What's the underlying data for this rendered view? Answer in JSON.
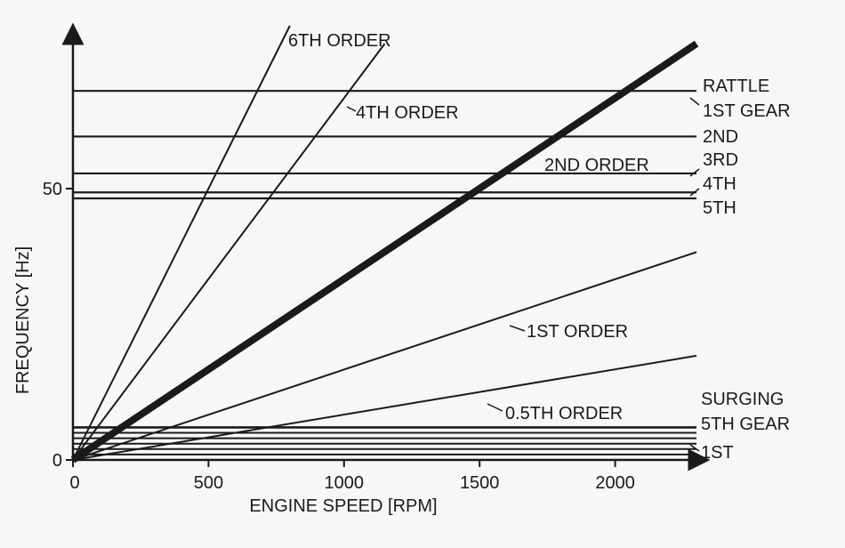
{
  "chart_data": {
    "type": "line",
    "title": "",
    "xlabel": "ENGINE SPEED [RPM]",
    "ylabel": "FREQUENCY [Hz]",
    "xlim": [
      0,
      2300
    ],
    "ylim": [
      0,
      70
    ],
    "xticks": [
      "0",
      "500",
      "1000",
      "1500",
      "2000"
    ],
    "xtick_values": [
      0,
      500,
      1000,
      1500,
      2000
    ],
    "yticks": [
      "0",
      "50"
    ],
    "ytick_values": [
      0,
      50
    ],
    "grid": false,
    "order_lines": [
      {
        "name": "6TH ORDER",
        "x": [
          0,
          800
        ],
        "y": [
          0,
          80
        ],
        "weight": "normal"
      },
      {
        "name": "4TH ORDER",
        "x": [
          0,
          1150
        ],
        "y": [
          0,
          76.7
        ],
        "weight": "normal"
      },
      {
        "name": "2ND ORDER",
        "x": [
          0,
          2300
        ],
        "y": [
          0,
          76.7
        ],
        "weight": "bold"
      },
      {
        "name": "1ST ORDER",
        "x": [
          0,
          2300
        ],
        "y": [
          0,
          38.3
        ],
        "weight": "normal"
      },
      {
        "name": "0.5TH ORDER",
        "x": [
          0,
          2300
        ],
        "y": [
          0,
          19.2
        ],
        "weight": "normal"
      }
    ],
    "rattle_lines": [
      {
        "name": "1ST GEAR",
        "y": 68.0
      },
      {
        "name": "2ND",
        "y": 59.6
      },
      {
        "name": "3RD",
        "y": 52.8
      },
      {
        "name": "4TH",
        "y": 49.3
      },
      {
        "name": "5TH",
        "y": 48.2
      }
    ],
    "surging_lines": [
      {
        "name": "5TH GEAR",
        "y": 6.0
      },
      {
        "name": "",
        "y": 5.0
      },
      {
        "name": "",
        "y": 4.0
      },
      {
        "name": "",
        "y": 3.0
      },
      {
        "name": "1ST",
        "y": 2.0
      },
      {
        "name": "",
        "y": 1.0
      }
    ],
    "annotations": {
      "rattle": "RATTLE",
      "surging": "SURGING"
    }
  }
}
